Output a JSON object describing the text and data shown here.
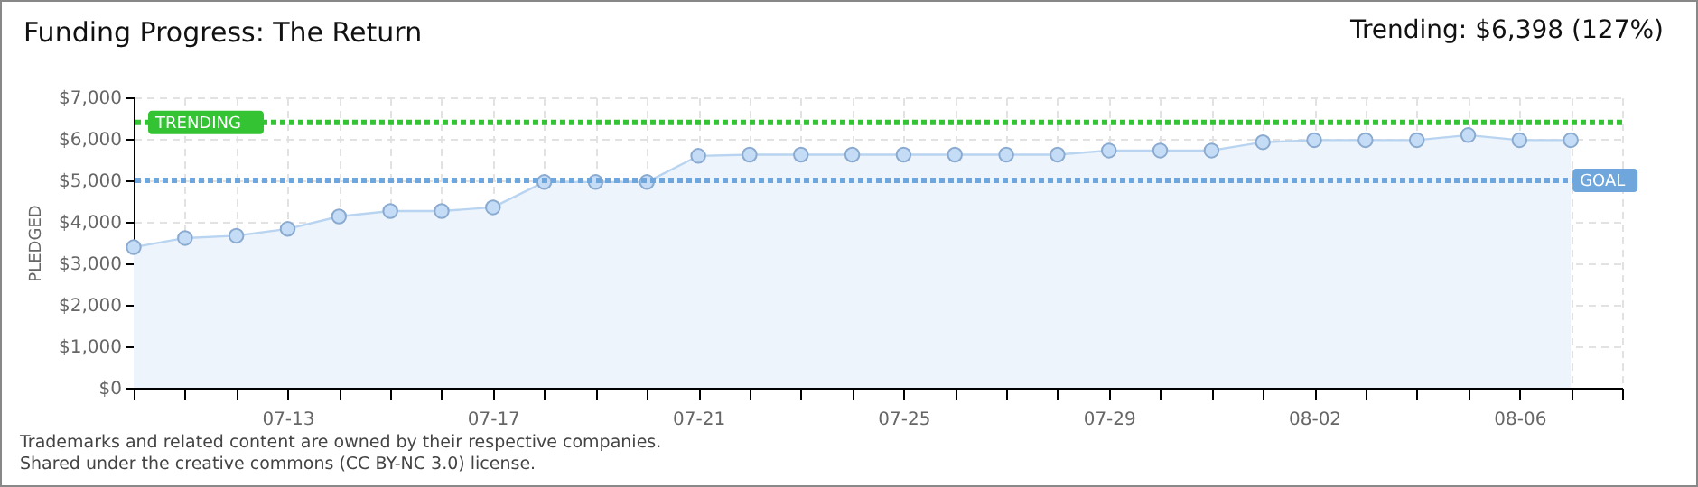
{
  "chart_data": {
    "type": "area",
    "title": "Funding Progress: The Return",
    "ylabel": "PLEDGED",
    "annotations": [
      "Trending: $6,398 (127%)",
      "Trademarks and related content are owned by their respective companies.",
      "Shared under the creative commons (CC BY-NC 3.0) license."
    ],
    "x": [
      "--07-10",
      "--07-11",
      "--07-12",
      "--07-13",
      "--07-14",
      "--07-15",
      "--07-16",
      "--07-17",
      "--07-18",
      "--07-19",
      "--07-20",
      "--07-21",
      "--07-22",
      "--07-23",
      "--07-24",
      "--07-25",
      "--07-26",
      "--07-27",
      "--07-28",
      "--07-29",
      "--07-30",
      "--07-31",
      "--08-01",
      "--08-02",
      "--08-03",
      "--08-04",
      "--08-05",
      "--08-06",
      "--08-07"
    ],
    "series": [
      {
        "color": "#b8d4f0",
        "values": [
          3390,
          3610,
          3665,
          3830,
          4130,
          4260,
          4260,
          4350,
          4960,
          4960,
          4960,
          5590,
          5620,
          5620,
          5620,
          5620,
          5620,
          5620,
          5620,
          5720,
          5720,
          5720,
          5920,
          5970,
          5970,
          5970,
          6090,
          5970,
          5970
        ]
      }
    ],
    "xlim": [
      "--07-10",
      "--08-08"
    ],
    "xticks": [
      {
        "value": "--07-10",
        "label": null
      },
      {
        "value": "--07-11",
        "label": null
      },
      {
        "value": "--07-12",
        "label": null
      },
      {
        "value": "--07-13",
        "label": "07-13"
      },
      {
        "value": "--07-14",
        "label": null
      },
      {
        "value": "--07-15",
        "label": null
      },
      {
        "value": "--07-16",
        "label": null
      },
      {
        "value": "--07-17",
        "label": "07-17"
      },
      {
        "value": "--07-18",
        "label": null
      },
      {
        "value": "--07-19",
        "label": null
      },
      {
        "value": "--07-20",
        "label": null
      },
      {
        "value": "--07-21",
        "label": "07-21"
      },
      {
        "value": "--07-22",
        "label": null
      },
      {
        "value": "--07-23",
        "label": null
      },
      {
        "value": "--07-24",
        "label": null
      },
      {
        "value": "--07-25",
        "label": "07-25"
      },
      {
        "value": "--07-26",
        "label": null
      },
      {
        "value": "--07-27",
        "label": null
      },
      {
        "value": "--07-28",
        "label": null
      },
      {
        "value": "--07-29",
        "label": "07-29"
      },
      {
        "value": "--07-30",
        "label": null
      },
      {
        "value": "--07-31",
        "label": null
      },
      {
        "value": "--08-01",
        "label": null
      },
      {
        "value": "--08-02",
        "label": "08-02"
      },
      {
        "value": "--08-03",
        "label": null
      },
      {
        "value": "--08-04",
        "label": null
      },
      {
        "value": "--08-05",
        "label": null
      },
      {
        "value": "--08-06",
        "label": "08-06"
      },
      {
        "value": "--08-07",
        "label": null
      },
      {
        "value": "--08-08",
        "label": null
      }
    ],
    "ylim": [
      0,
      7000
    ],
    "yticks": [
      {
        "value": 0,
        "label": "$0"
      },
      {
        "value": 1000,
        "label": "$1,000"
      },
      {
        "value": 2000,
        "label": "$2,000"
      },
      {
        "value": 3000,
        "label": "$3,000"
      },
      {
        "value": 4000,
        "label": "$4,000"
      },
      {
        "value": 5000,
        "label": "$5,000"
      },
      {
        "value": 6000,
        "label": "$6,000"
      },
      {
        "value": 7000,
        "label": "$7,000"
      }
    ],
    "ref_lines": [
      {
        "axis": "y",
        "value": 6398,
        "label": "TRENDING",
        "color": "#33c333",
        "line_style": "dotted"
      },
      {
        "axis": "y",
        "value": 5000,
        "label": "GOAL",
        "color": "#6fa6dc",
        "line_style": "dotted"
      }
    ],
    "grid": true,
    "marker": "circle",
    "line_style": "solid"
  }
}
